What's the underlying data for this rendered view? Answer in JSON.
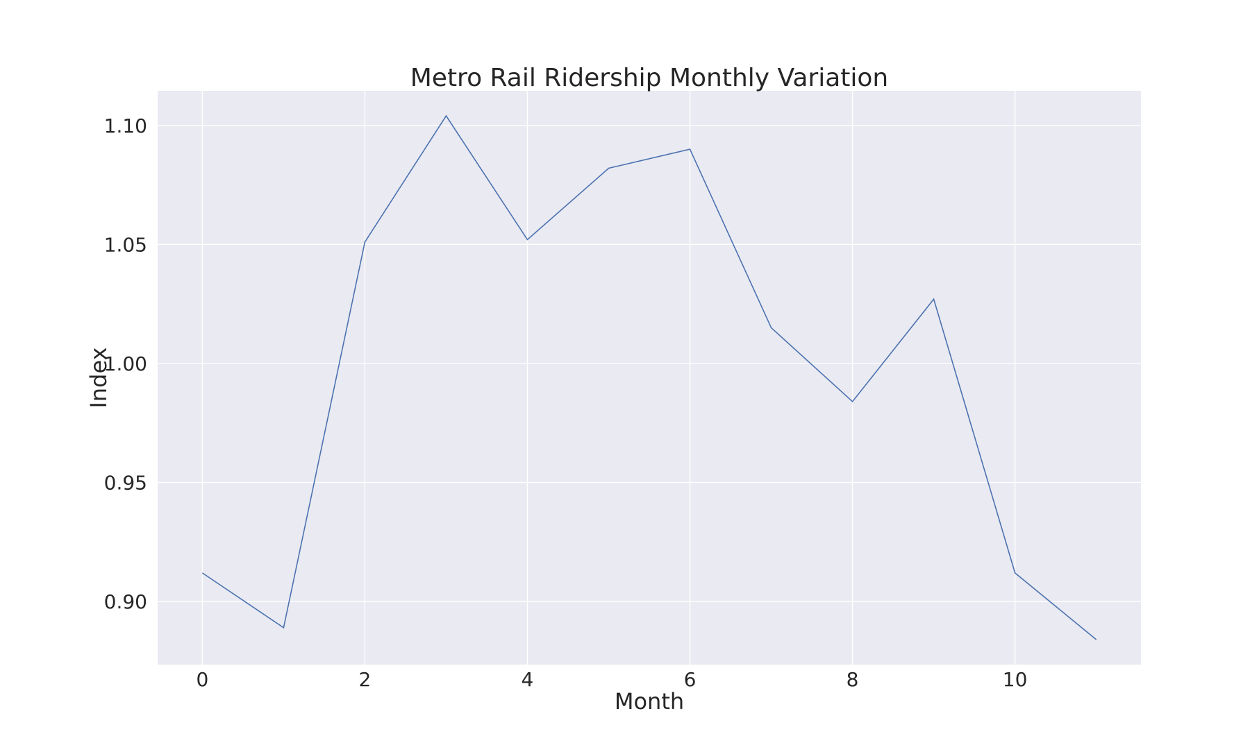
{
  "chart_data": {
    "type": "line",
    "title": "Metro Rail Ridership Monthly Variation",
    "xlabel": "Month",
    "ylabel": "Index",
    "x": [
      0,
      1,
      2,
      3,
      4,
      5,
      6,
      7,
      8,
      9,
      10,
      11
    ],
    "series": [
      {
        "values": [
          0.912,
          0.889,
          1.051,
          1.104,
          1.052,
          1.082,
          1.09,
          1.015,
          0.984,
          1.027,
          0.912,
          0.884
        ]
      }
    ],
    "xlim": [
      -0.55,
      11.55
    ],
    "ylim": [
      0.8735,
      1.1145
    ],
    "xticks": [
      0,
      2,
      4,
      6,
      8,
      10
    ],
    "yticks": [
      0.9,
      0.95,
      1.0,
      1.05,
      1.1
    ],
    "xtick_labels": [
      "0",
      "2",
      "4",
      "6",
      "8",
      "10"
    ],
    "ytick_labels": [
      "0.90",
      "0.95",
      "1.00",
      "1.05",
      "1.10"
    ],
    "grid": true,
    "colors": {
      "background": "#eaeaf2",
      "grid": "#ffffff",
      "line": "#4c72b0",
      "text": "#262626"
    }
  }
}
